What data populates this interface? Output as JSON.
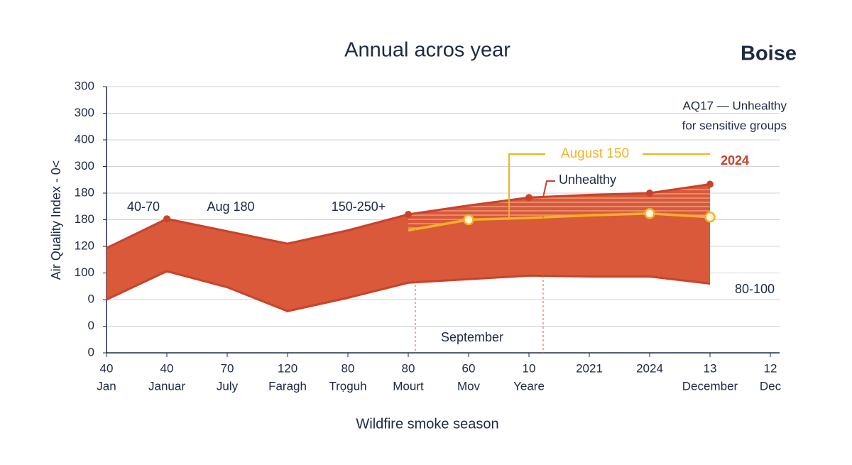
{
  "chart_data": {
    "type": "area",
    "title": "Annual acros year",
    "subtitle": "Boise",
    "y_label": "Air Quality Index  - 0<",
    "x_label": "Wildfire smoke season",
    "categories": [
      "40",
      "40",
      "70",
      "120",
      "80",
      "80",
      "60",
      "10",
      "2021",
      "2024",
      "13",
      "12"
    ],
    "category_sublabels": [
      "Jan",
      "Januar",
      "July",
      "Faragh",
      "Trọguh",
      "Mourt",
      "Mov",
      "Yeare",
      null,
      null,
      "December",
      "Dec"
    ],
    "ylim": [
      0,
      300
    ],
    "yticks": [
      0,
      {
        "value": 30,
        "label": "0"
      },
      {
        "value": 60,
        "label": "0"
      },
      {
        "value": 90,
        "label": "100"
      },
      {
        "value": 120,
        "label": "120"
      },
      {
        "value": 150,
        "label": "180"
      },
      {
        "value": 180,
        "label": "180"
      },
      {
        "value": 210,
        "label": "300"
      },
      {
        "value": 240,
        "label": "400"
      },
      {
        "value": 270,
        "label": "300"
      },
      300
    ],
    "grid": true,
    "band": {
      "color": "#d9593a",
      "line_color": "#c8432b",
      "upper": [
        118,
        151,
        137,
        123,
        138,
        156,
        166,
        175,
        178,
        180,
        190,
        null
      ],
      "lower": [
        60,
        92,
        74,
        47,
        62,
        79,
        83,
        87,
        86,
        86,
        78,
        null
      ]
    },
    "series": [
      {
        "color": "#f2b224",
        "values": [
          null,
          null,
          null,
          null,
          null,
          138,
          150,
          152,
          155,
          157,
          153,
          null
        ]
      }
    ],
    "annotations": {
      "range_low": "40-70",
      "peak": "Aug 180",
      "range_high": "150-250+",
      "month": "September",
      "callout": "August 150",
      "unhealthy": "Unhealthy",
      "year": "2024",
      "end_range": "80-100",
      "note_1": "AQ17 — Unhealthy",
      "note_2": "for sensitive groups"
    }
  }
}
